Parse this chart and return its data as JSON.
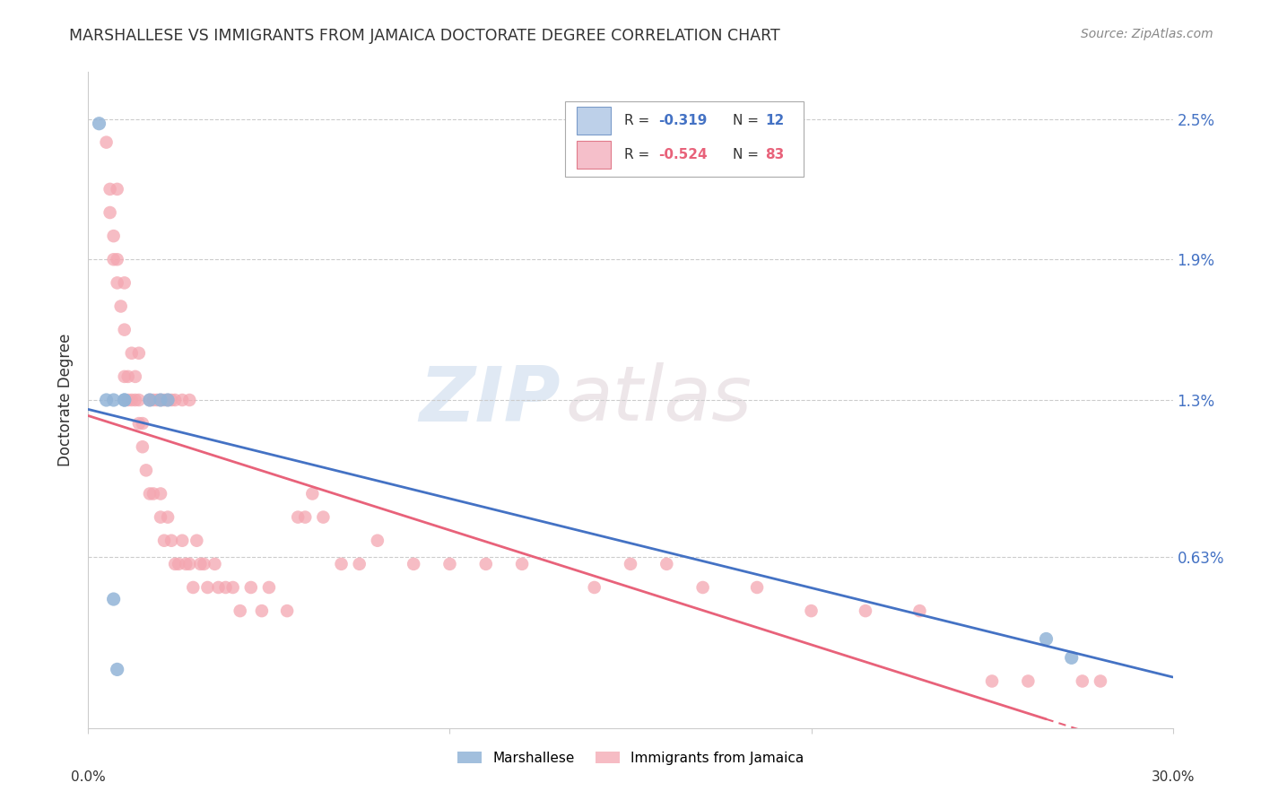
{
  "title": "MARSHALLESE VS IMMIGRANTS FROM JAMAICA DOCTORATE DEGREE CORRELATION CHART",
  "source": "Source: ZipAtlas.com",
  "ylabel": "Doctorate Degree",
  "yticks": [
    0.0,
    0.0063,
    0.013,
    0.019,
    0.025
  ],
  "ytick_labels": [
    "",
    "0.63%",
    "1.3%",
    "1.9%",
    "2.5%"
  ],
  "xlim": [
    0.0,
    0.3
  ],
  "ylim": [
    -0.001,
    0.027
  ],
  "blue_color": "#92B4D7",
  "pink_color": "#F4A6B0",
  "blue_line_color": "#4472C4",
  "pink_line_color": "#E8627A",
  "watermark_zip": "ZIP",
  "watermark_atlas": "atlas",
  "marshallese_x": [
    0.003,
    0.005,
    0.007,
    0.007,
    0.008,
    0.01,
    0.01,
    0.017,
    0.02,
    0.022,
    0.265,
    0.272
  ],
  "marshallese_y": [
    0.0248,
    0.013,
    0.013,
    0.0045,
    0.0015,
    0.013,
    0.013,
    0.013,
    0.013,
    0.013,
    0.0028,
    0.002
  ],
  "jamaica_x": [
    0.005,
    0.006,
    0.006,
    0.007,
    0.007,
    0.008,
    0.008,
    0.008,
    0.009,
    0.01,
    0.01,
    0.01,
    0.011,
    0.011,
    0.012,
    0.012,
    0.013,
    0.013,
    0.014,
    0.014,
    0.014,
    0.015,
    0.015,
    0.016,
    0.017,
    0.017,
    0.018,
    0.018,
    0.019,
    0.02,
    0.02,
    0.02,
    0.021,
    0.021,
    0.022,
    0.022,
    0.023,
    0.023,
    0.024,
    0.024,
    0.025,
    0.026,
    0.026,
    0.027,
    0.028,
    0.028,
    0.029,
    0.03,
    0.031,
    0.032,
    0.033,
    0.035,
    0.036,
    0.038,
    0.04,
    0.042,
    0.045,
    0.048,
    0.05,
    0.055,
    0.058,
    0.06,
    0.062,
    0.065,
    0.07,
    0.075,
    0.08,
    0.09,
    0.1,
    0.11,
    0.12,
    0.14,
    0.15,
    0.16,
    0.17,
    0.185,
    0.2,
    0.215,
    0.23,
    0.25,
    0.26,
    0.275,
    0.28
  ],
  "jamaica_y": [
    0.024,
    0.022,
    0.021,
    0.02,
    0.019,
    0.019,
    0.018,
    0.022,
    0.017,
    0.018,
    0.016,
    0.014,
    0.014,
    0.013,
    0.015,
    0.013,
    0.014,
    0.013,
    0.013,
    0.012,
    0.015,
    0.012,
    0.011,
    0.01,
    0.013,
    0.009,
    0.013,
    0.009,
    0.013,
    0.009,
    0.008,
    0.013,
    0.013,
    0.007,
    0.008,
    0.013,
    0.007,
    0.013,
    0.006,
    0.013,
    0.006,
    0.007,
    0.013,
    0.006,
    0.006,
    0.013,
    0.005,
    0.007,
    0.006,
    0.006,
    0.005,
    0.006,
    0.005,
    0.005,
    0.005,
    0.004,
    0.005,
    0.004,
    0.005,
    0.004,
    0.008,
    0.008,
    0.009,
    0.008,
    0.006,
    0.006,
    0.007,
    0.006,
    0.006,
    0.006,
    0.006,
    0.005,
    0.006,
    0.006,
    0.005,
    0.005,
    0.004,
    0.004,
    0.004,
    0.001,
    0.001,
    0.001,
    0.001
  ]
}
